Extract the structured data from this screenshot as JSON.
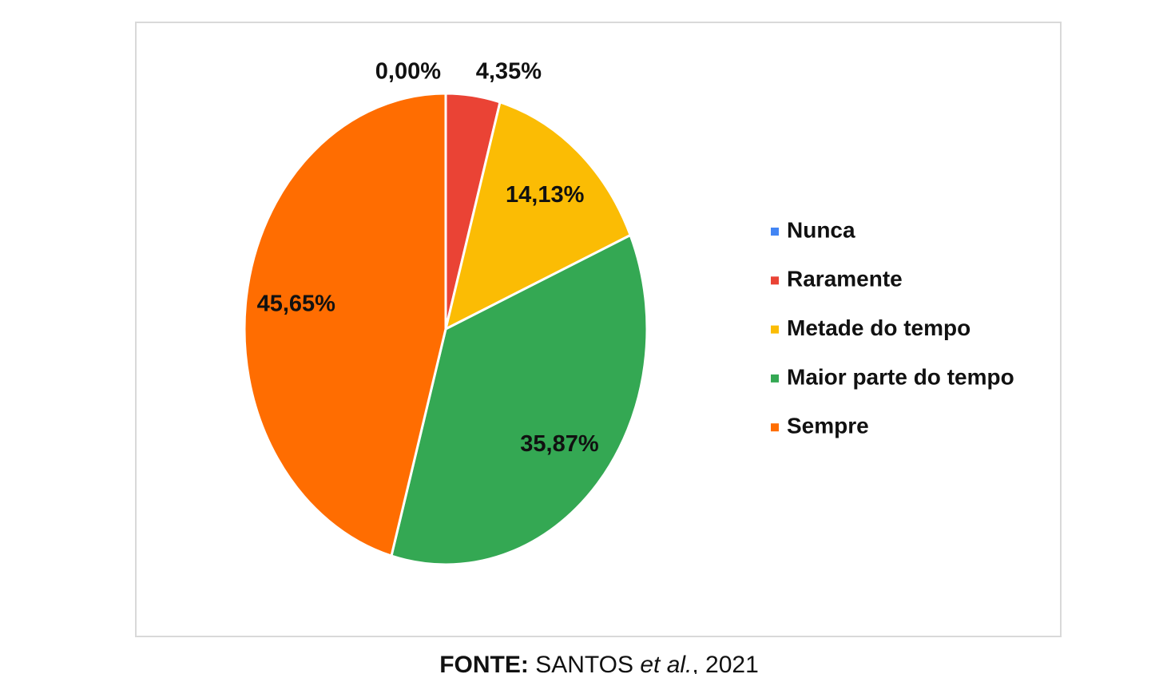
{
  "chart_data": {
    "type": "pie",
    "categories": [
      "Nunca",
      "Raramente",
      "Metade do tempo",
      "Maior parte do tempo",
      "Sempre"
    ],
    "values": [
      0,
      4.35,
      14.13,
      35.87,
      45.65
    ],
    "value_labels": [
      "0,00%",
      "4,35%",
      "14,13%",
      "35,87%",
      "45,65%"
    ],
    "colors": [
      "#4285f4",
      "#ea4335",
      "#fbbc04",
      "#34a853",
      "#ff6d01"
    ],
    "legend": "right"
  },
  "source": {
    "label": "FONTE:",
    "author": "SANTOS",
    "etal": "et al.",
    "year": ", 2021"
  }
}
